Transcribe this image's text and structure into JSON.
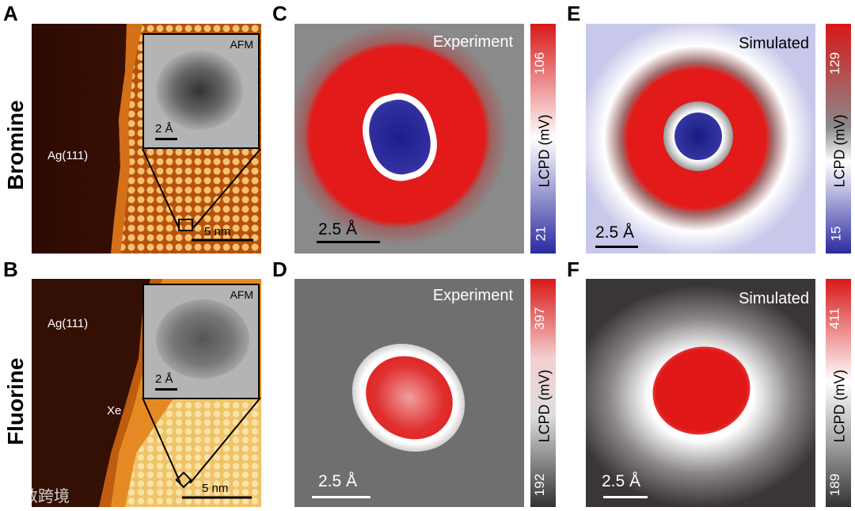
{
  "labels": {
    "A": "A",
    "B": "B",
    "C": "C",
    "D": "D",
    "E": "E",
    "F": "F"
  },
  "rows": {
    "top": "Bromine",
    "bottom": "Fluorine"
  },
  "panelA": {
    "surface": "Ag(111)",
    "inset": "AFM",
    "inset_scale": "2 Å",
    "scale": "5 nm"
  },
  "panelB": {
    "surface": "Ag(111)",
    "adsorbate": "Xe",
    "inset": "AFM",
    "inset_scale": "2 Å",
    "scale": "5 nm"
  },
  "panelC": {
    "title": "Experiment",
    "scale": "2.5 Å",
    "cb_max": "106",
    "cb_min": "21",
    "cb_label": "LCPD (mV)"
  },
  "panelD": {
    "title": "Experiment",
    "scale": "2.5 Å",
    "cb_max": "397",
    "cb_min": "192",
    "cb_label": "LCPD (mV)"
  },
  "panelE": {
    "title": "Simulated",
    "scale": "2.5 Å",
    "cb_max": "129",
    "cb_min": "15",
    "cb_label": "LCPD (mV)"
  },
  "panelF": {
    "title": "Simulated",
    "scale": "2.5 Å",
    "cb_max": "411",
    "cb_min": "189",
    "cb_label": "LCPD (mV)"
  },
  "watermark": "大数跨境",
  "colors": {
    "red": "#e01818",
    "blue": "#2a2aa0",
    "orange": "#e8861a",
    "gray": "#7a7a7a"
  }
}
